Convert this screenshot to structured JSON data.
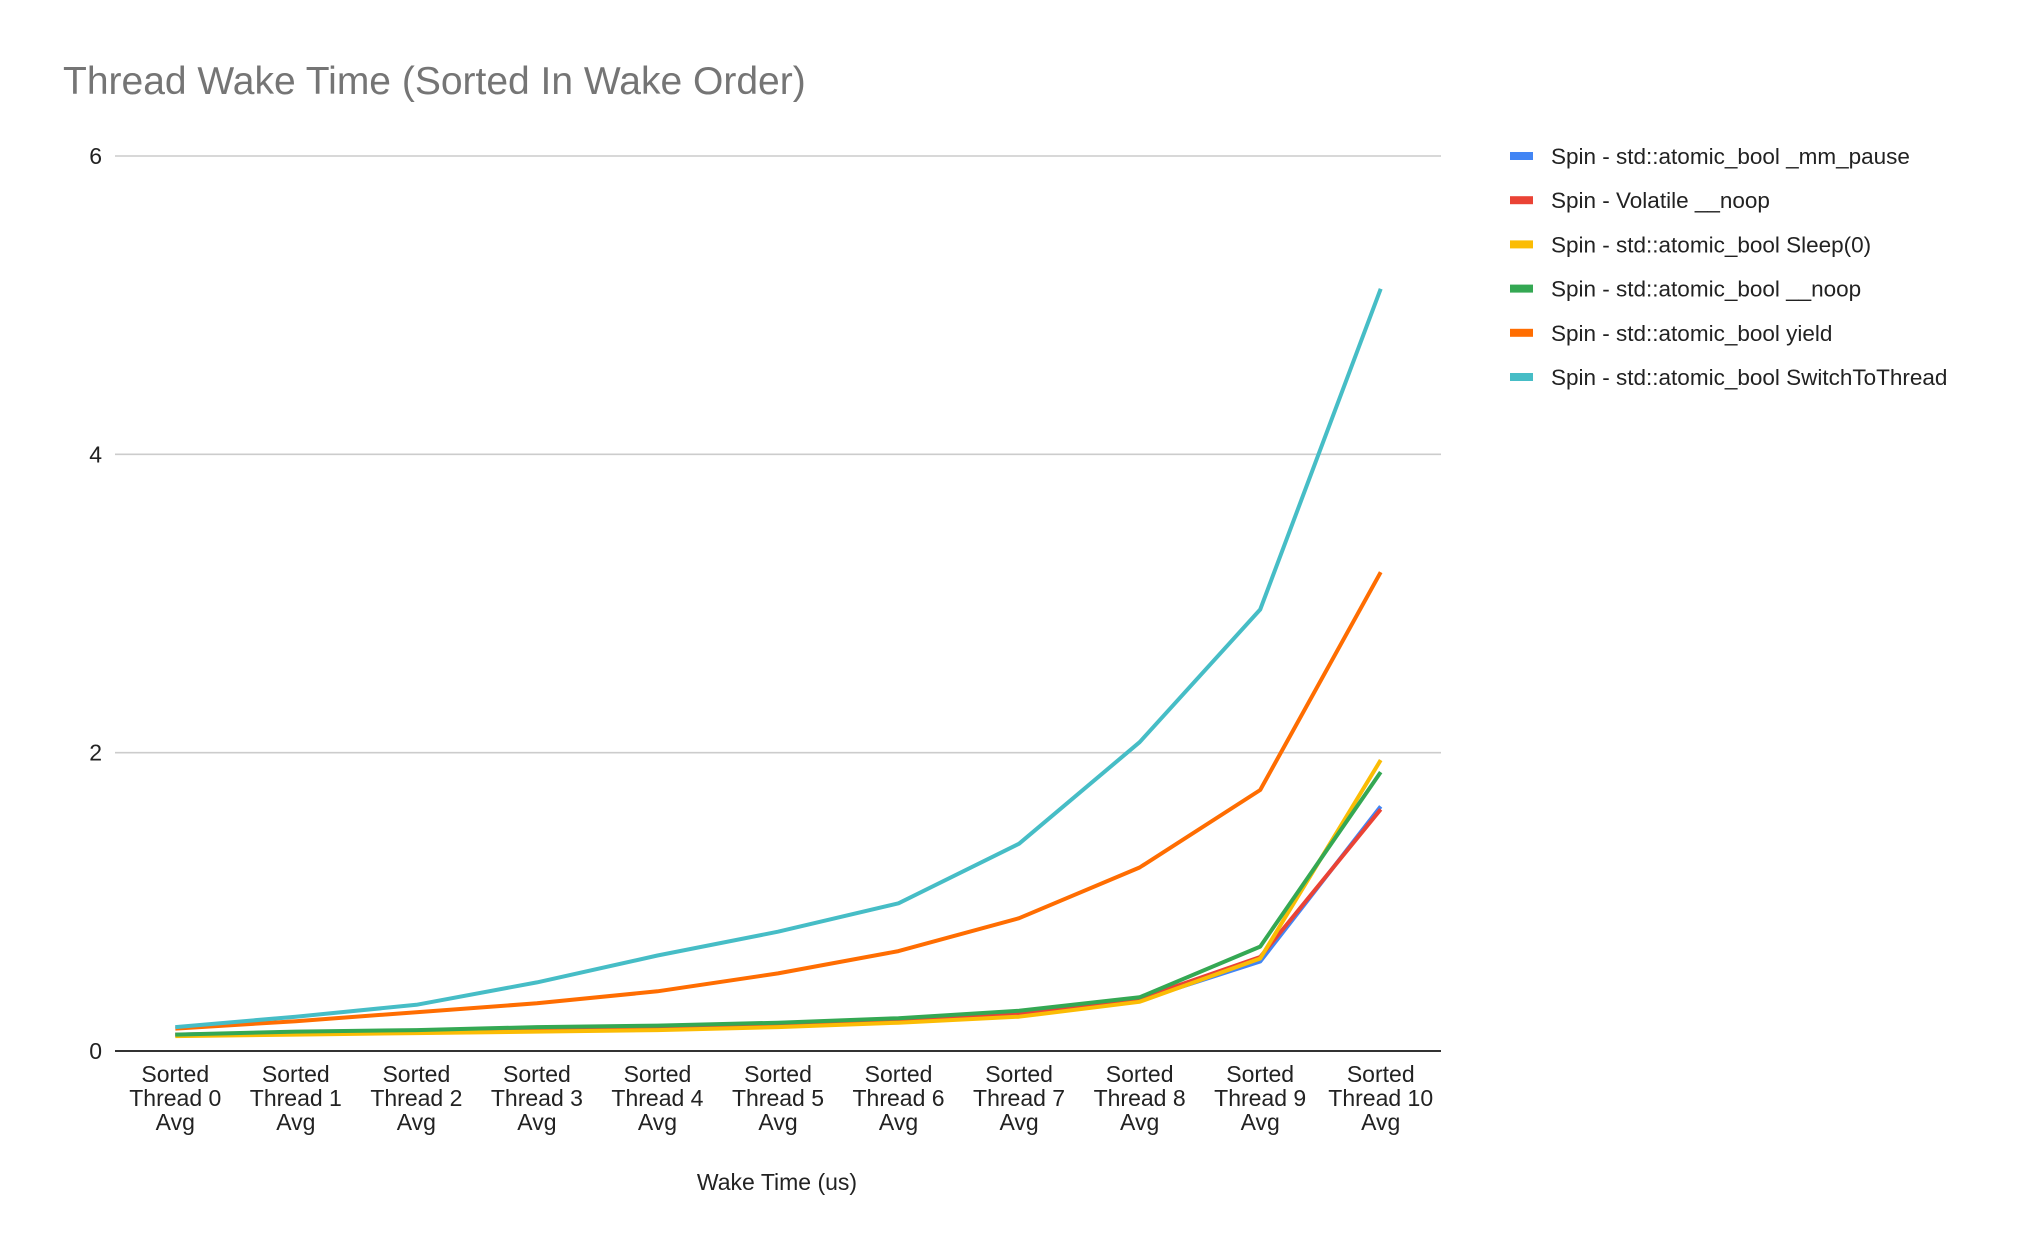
{
  "chart_data": {
    "type": "line",
    "title": "Thread Wake Time (Sorted In Wake Order)",
    "xlabel": "Wake Time (us)",
    "ylabel": "",
    "ylim": [
      0,
      6
    ],
    "yticks": [
      "0",
      "2",
      "4",
      "6"
    ],
    "ytick_values": [
      0,
      2,
      4,
      6
    ],
    "grid": true,
    "legend_position": "right",
    "categories": [
      [
        "Sorted",
        "Thread 0",
        "Avg"
      ],
      [
        "Sorted",
        "Thread 1",
        "Avg"
      ],
      [
        "Sorted",
        "Thread 2",
        "Avg"
      ],
      [
        "Sorted",
        "Thread 3",
        "Avg"
      ],
      [
        "Sorted",
        "Thread 4",
        "Avg"
      ],
      [
        "Sorted",
        "Thread 5",
        "Avg"
      ],
      [
        "Sorted",
        "Thread 6",
        "Avg"
      ],
      [
        "Sorted",
        "Thread 7",
        "Avg"
      ],
      [
        "Sorted",
        "Thread 8",
        "Avg"
      ],
      [
        "Sorted",
        "Thread 9",
        "Avg"
      ],
      [
        "Sorted",
        "Thread 10",
        "Avg"
      ]
    ],
    "series": [
      {
        "name": "Spin - std::atomic_bool _mm_pause",
        "color": "#4285f4",
        "values": [
          0.11,
          0.12,
          0.13,
          0.14,
          0.15,
          0.17,
          0.2,
          0.24,
          0.34,
          0.6,
          1.64
        ]
      },
      {
        "name": "Spin - Volatile __noop",
        "color": "#ea4335",
        "values": [
          0.11,
          0.12,
          0.13,
          0.14,
          0.16,
          0.18,
          0.21,
          0.25,
          0.35,
          0.63,
          1.62
        ]
      },
      {
        "name": "Spin - std::atomic_bool Sleep(0)",
        "color": "#fbbc04",
        "values": [
          0.1,
          0.11,
          0.12,
          0.13,
          0.14,
          0.16,
          0.19,
          0.23,
          0.33,
          0.62,
          1.95
        ]
      },
      {
        "name": "Spin - std::atomic_bool __noop",
        "color": "#34a853",
        "values": [
          0.11,
          0.13,
          0.14,
          0.16,
          0.17,
          0.19,
          0.22,
          0.27,
          0.36,
          0.7,
          1.87
        ]
      },
      {
        "name": "Spin - std::atomic_bool yield",
        "color": "#ff6d01",
        "values": [
          0.15,
          0.2,
          0.26,
          0.32,
          0.4,
          0.52,
          0.67,
          0.89,
          1.23,
          1.75,
          3.21
        ]
      },
      {
        "name": "Spin - std::atomic_bool SwitchToThread",
        "color": "#46bdc6",
        "values": [
          0.16,
          0.23,
          0.31,
          0.46,
          0.64,
          0.8,
          0.99,
          1.39,
          2.07,
          2.96,
          5.11
        ]
      }
    ]
  },
  "colors": {
    "title": "#757575",
    "grid": "#cccccc",
    "axis": "#333333",
    "text": "#222222"
  }
}
